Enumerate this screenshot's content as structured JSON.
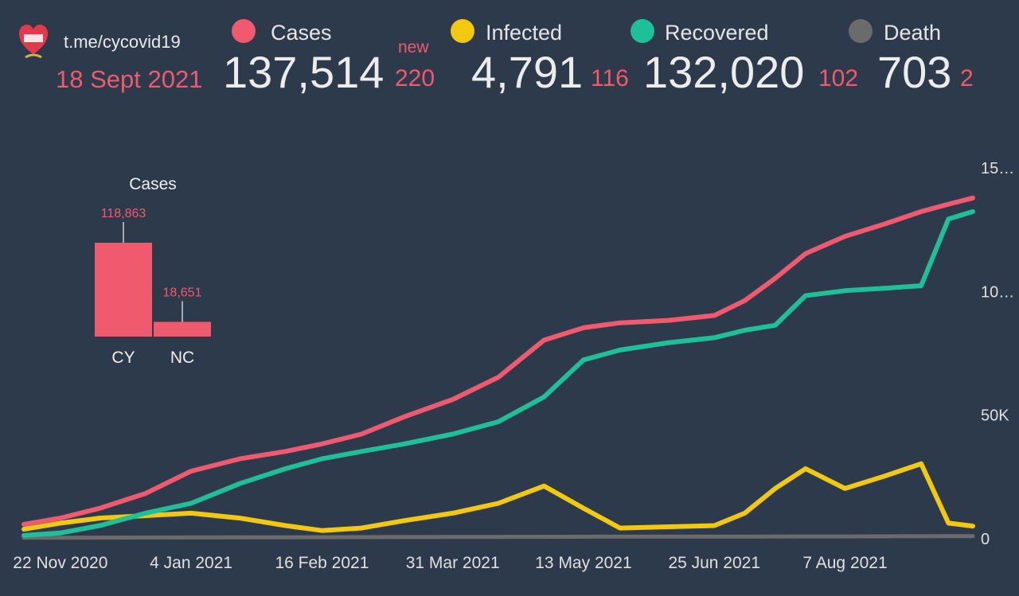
{
  "header": {
    "channel": "t.me/cycovid19",
    "date": "18 Sept 2021",
    "new_label": "new",
    "stats": [
      {
        "label": "Cases",
        "value": "137,514",
        "delta": "220",
        "color": "#ef5a6f"
      },
      {
        "label": "Infected",
        "value": "4,791",
        "delta": "116",
        "color": "#f2c811"
      },
      {
        "label": "Recovered",
        "value": "132,020",
        "delta": "102",
        "color": "#1fbf9a"
      },
      {
        "label": "Death",
        "value": "703",
        "delta": "2",
        "color": "#6b6b6b"
      }
    ]
  },
  "chart_data": [
    {
      "type": "line",
      "x_ticks": [
        "22 Nov 2020",
        "4 Jan 2021",
        "16 Feb 2021",
        "31 Mar 2021",
        "13 May 2021",
        "25 Jun 2021",
        "7 Aug 2021"
      ],
      "y_ticks": [
        "0",
        "50K",
        "10…",
        "15…"
      ],
      "ylim": [
        0,
        150000
      ],
      "x": [
        "2020-11-10",
        "2020-11-22",
        "2020-12-05",
        "2020-12-20",
        "2021-01-04",
        "2021-01-20",
        "2021-02-04",
        "2021-02-16",
        "2021-03-01",
        "2021-03-15",
        "2021-03-31",
        "2021-04-15",
        "2021-04-30",
        "2021-05-13",
        "2021-05-25",
        "2021-06-10",
        "2021-06-25",
        "2021-07-05",
        "2021-07-15",
        "2021-07-25",
        "2021-08-07",
        "2021-08-20",
        "2021-09-01",
        "2021-09-10",
        "2021-09-18"
      ],
      "series": [
        {
          "name": "Cases",
          "color": "#ef5a6f",
          "values": [
            5500,
            8000,
            12000,
            18000,
            27000,
            32000,
            35000,
            38000,
            42000,
            49000,
            56000,
            65000,
            80000,
            85000,
            87000,
            88000,
            90000,
            96000,
            105000,
            115000,
            122000,
            127000,
            132000,
            135000,
            137514
          ]
        },
        {
          "name": "Recovered",
          "color": "#1fbf9a",
          "values": [
            1000,
            2000,
            5000,
            10000,
            14000,
            22000,
            28000,
            32000,
            35000,
            38000,
            42000,
            47000,
            57000,
            72000,
            76000,
            79000,
            81000,
            84000,
            86000,
            98000,
            100000,
            101000,
            102000,
            129000,
            132020
          ]
        },
        {
          "name": "Infected",
          "color": "#f2c811",
          "values": [
            3500,
            6000,
            8000,
            9000,
            10000,
            8000,
            5000,
            3000,
            4000,
            7000,
            10000,
            14000,
            21000,
            12000,
            4000,
            4500,
            5000,
            10000,
            20000,
            28000,
            20000,
            25000,
            30000,
            6000,
            4791
          ]
        },
        {
          "name": "Death",
          "color": "#6b6b6b",
          "values": [
            50,
            80,
            120,
            150,
            180,
            230,
            260,
            290,
            320,
            360,
            390,
            420,
            450,
            480,
            500,
            510,
            520,
            530,
            560,
            600,
            620,
            650,
            680,
            700,
            703
          ]
        }
      ]
    },
    {
      "type": "bar",
      "title": "Cases",
      "categories": [
        "CY",
        "NC"
      ],
      "values": [
        118863,
        18651
      ],
      "value_labels": [
        "118,863",
        "18,651"
      ],
      "color": "#ef5a6f"
    }
  ]
}
